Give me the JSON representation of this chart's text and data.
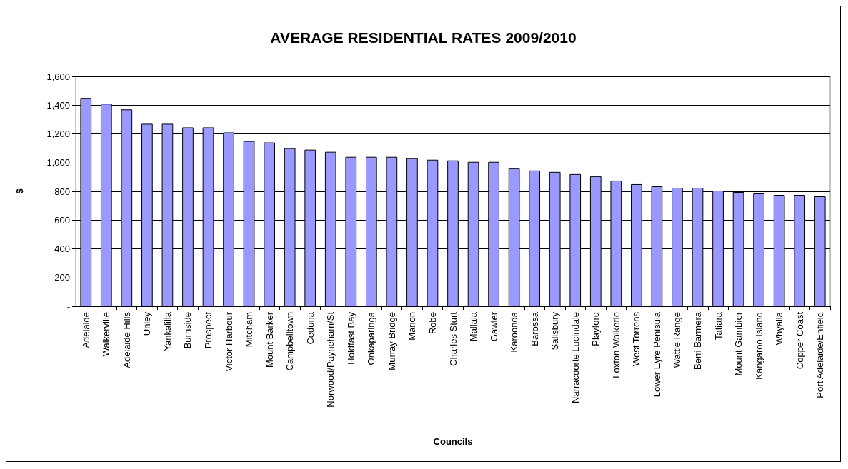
{
  "chart_data": {
    "type": "bar",
    "title": "AVERAGE RESIDENTIAL RATES 2009/2010",
    "xlabel": "Councils",
    "ylabel": "$",
    "categories": [
      "Adelaide",
      "Walkerville",
      "Adelaide Hills",
      "Unley",
      "Yankalilla",
      "Burnside",
      "Prospect",
      "Victor Harbour",
      "Mitcham",
      "Mount Barker",
      "Campbelltown",
      "Ceduna",
      "Norwood/Payneham/St",
      "Holdfast Bay",
      "Onkaparinga",
      "Murray Bridge",
      "Marion",
      "Robe",
      "Charles Sturt",
      "Mallala",
      "Gawler",
      "Karoonda",
      "Barossa",
      "Salisbury",
      "Narracoorte Lucindale",
      "Playford",
      "Loxton Waikerie",
      "West Torrens",
      "Lower Eyre Penisula",
      "Wattle Range",
      "Berri Barmera",
      "Tatiara",
      "Mount Gambier",
      "Kangaroo Island",
      "Whyalla",
      "Copper Coast",
      "Port Adelaide/Enfield"
    ],
    "values": [
      1450,
      1410,
      1370,
      1270,
      1270,
      1245,
      1245,
      1210,
      1150,
      1140,
      1100,
      1090,
      1075,
      1040,
      1040,
      1040,
      1030,
      1020,
      1015,
      1005,
      1005,
      960,
      945,
      935,
      920,
      905,
      875,
      850,
      835,
      825,
      825,
      805,
      795,
      785,
      775,
      775,
      765
    ],
    "color": "#9999ff",
    "ylim": [
      0,
      1600
    ],
    "yticks": [
      {
        "value": 0,
        "label": "-"
      },
      200,
      400,
      600,
      800,
      {
        "value": 1000,
        "label": "1,000"
      },
      {
        "value": 1200,
        "label": "1,200"
      },
      {
        "value": 1400,
        "label": "1,400"
      },
      {
        "value": 1600,
        "label": "1,600"
      }
    ],
    "grid": "y"
  }
}
